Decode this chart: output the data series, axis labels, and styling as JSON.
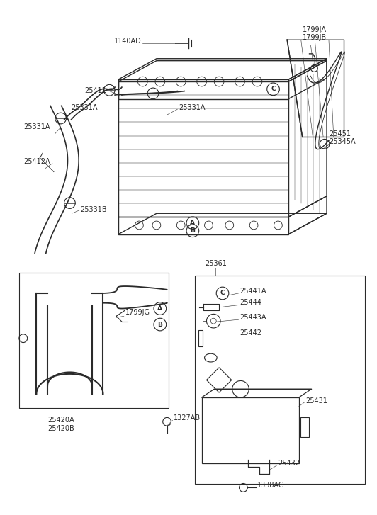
{
  "bg_color": "#ffffff",
  "line_color": "#2a2a2a",
  "label_color": "#000000",
  "fs": 7.0,
  "fig_w": 5.32,
  "fig_h": 7.27,
  "dpi": 100,
  "xlim": [
    0,
    532
  ],
  "ylim": [
    0,
    727
  ]
}
